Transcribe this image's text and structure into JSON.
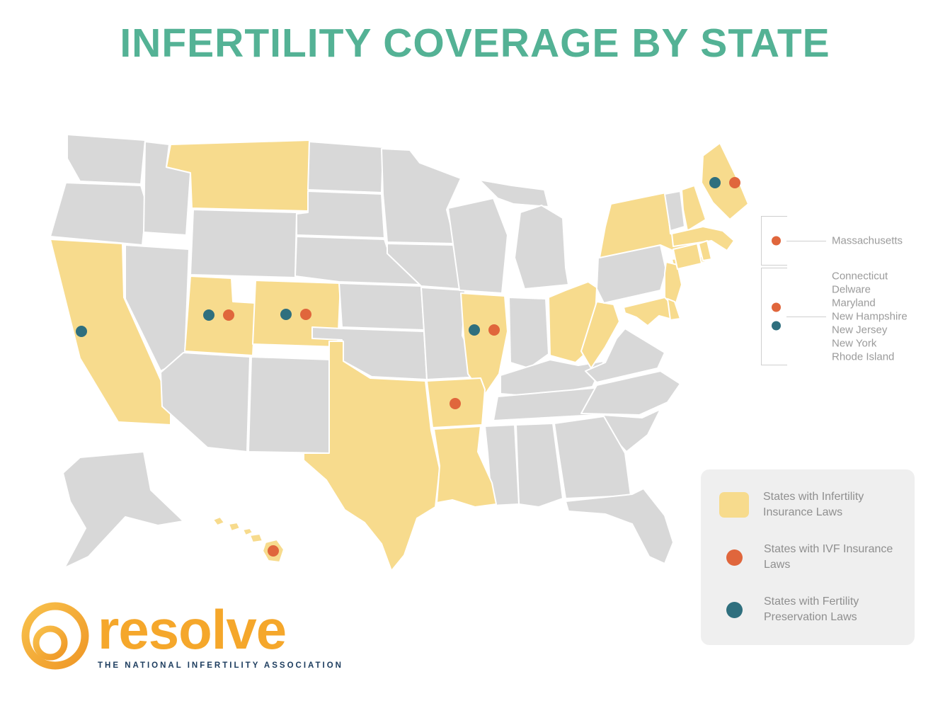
{
  "title": "INFERTILITY COVERAGE BY STATE",
  "colors": {
    "title": "#54b295",
    "state_default": "#d8d8d8",
    "state_coverage": "#f7db8d",
    "ivf_dot": "#e0663c",
    "preservation_dot": "#2f6f7e",
    "legend_bg": "#efefef",
    "label_text": "#9b9b9b",
    "logo_orange": "#f5a72b",
    "logo_navy": "#1c3c5e"
  },
  "map": {
    "coverage_states": [
      "CA",
      "MT",
      "UT",
      "CO",
      "TX",
      "HI",
      "AR",
      "LA",
      "IL",
      "OH",
      "WV",
      "MD",
      "DE",
      "NJ",
      "NY",
      "CT",
      "RI",
      "MA",
      "NH",
      "ME"
    ],
    "dots": [
      {
        "state": "CA",
        "types": [
          "preservation"
        ]
      },
      {
        "state": "UT",
        "types": [
          "preservation",
          "ivf"
        ]
      },
      {
        "state": "CO",
        "types": [
          "preservation",
          "ivf"
        ]
      },
      {
        "state": "IL",
        "types": [
          "preservation",
          "ivf"
        ]
      },
      {
        "state": "AR",
        "types": [
          "ivf"
        ]
      },
      {
        "state": "HI",
        "types": [
          "ivf"
        ]
      },
      {
        "state": "ME",
        "types": [
          "preservation",
          "ivf"
        ]
      }
    ]
  },
  "callouts": [
    {
      "states": [
        "Massachusetts"
      ],
      "dots": [
        "ivf"
      ]
    },
    {
      "states": [
        "Connecticut",
        "Delware",
        "Maryland",
        "New Hampshire",
        "New Jersey",
        "New York",
        "Rhode Island"
      ],
      "dots": [
        "ivf",
        "preservation"
      ]
    }
  ],
  "legend": {
    "items": [
      {
        "swatch": "square",
        "label": "States with Infertility Insurance Laws"
      },
      {
        "swatch": "ivf-dot",
        "label": "States with IVF Insurance Laws"
      },
      {
        "swatch": "preservation-dot",
        "label": "States with Fertility Preservation Laws"
      }
    ]
  },
  "logo": {
    "name": "resolve",
    "tagline": "THE NATIONAL INFERTILITY ASSOCIATION"
  }
}
